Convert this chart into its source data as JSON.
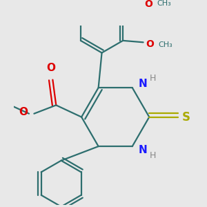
{
  "bg_color": "#e8e8e8",
  "bond_color": "#2d6e6e",
  "n_color": "#1a1aff",
  "o_color": "#dd0000",
  "s_color": "#aaaa00",
  "h_color": "#888888",
  "line_width": 1.6,
  "fig_size": [
    3.0,
    3.0
  ],
  "dpi": 100,
  "xlim": [
    -2.5,
    2.8
  ],
  "ylim": [
    -2.8,
    2.5
  ]
}
